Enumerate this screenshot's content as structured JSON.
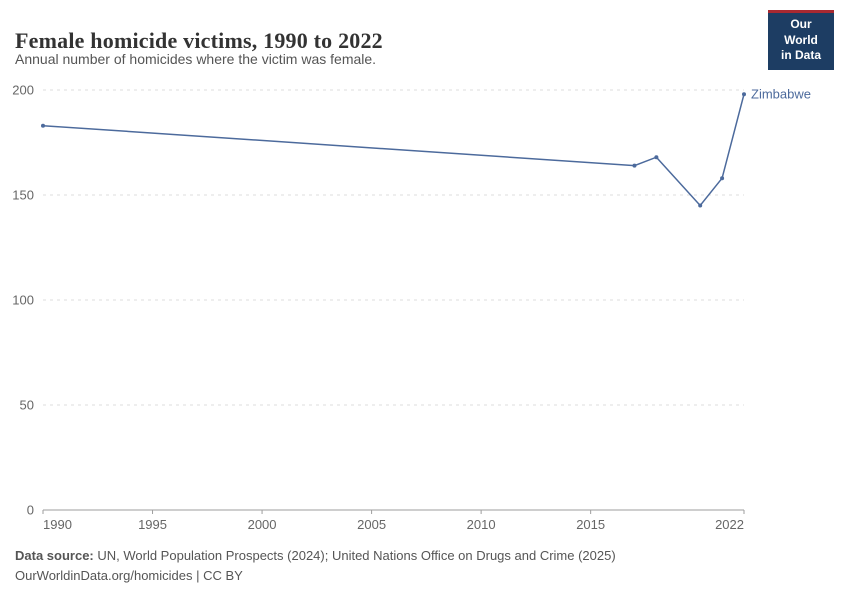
{
  "header": {
    "logo": {
      "line1": "Our World",
      "line2": "in Data",
      "bg_color": "#1d3d63",
      "accent_color": "#a82931"
    }
  },
  "chart_data": {
    "type": "line",
    "title": "Female homicide victims, 1990 to 2022",
    "subtitle": "Annual number of homicides where the victim was female.",
    "xlabel": "",
    "ylabel": "",
    "xlim": [
      1990,
      2022
    ],
    "ylim": [
      0,
      200
    ],
    "x_ticks": [
      1990,
      1995,
      2000,
      2005,
      2010,
      2015,
      2022
    ],
    "y_ticks": [
      0,
      50,
      100,
      150,
      200
    ],
    "grid": "horizontal-dashed",
    "legend": "end-of-line-label",
    "series": [
      {
        "name": "Zimbabwe",
        "color": "#4c6a9c",
        "points": [
          [
            1990,
            183
          ],
          [
            2017,
            164
          ],
          [
            2018,
            168
          ],
          [
            2020,
            145
          ],
          [
            2021,
            158
          ],
          [
            2022,
            198
          ]
        ]
      }
    ]
  },
  "footer": {
    "source_label": "Data source:",
    "source_text": " UN, World Population Prospects (2024); United Nations Office on Drugs and Crime (2025)",
    "link_line": "OurWorldinData.org/homicides | CC BY"
  }
}
